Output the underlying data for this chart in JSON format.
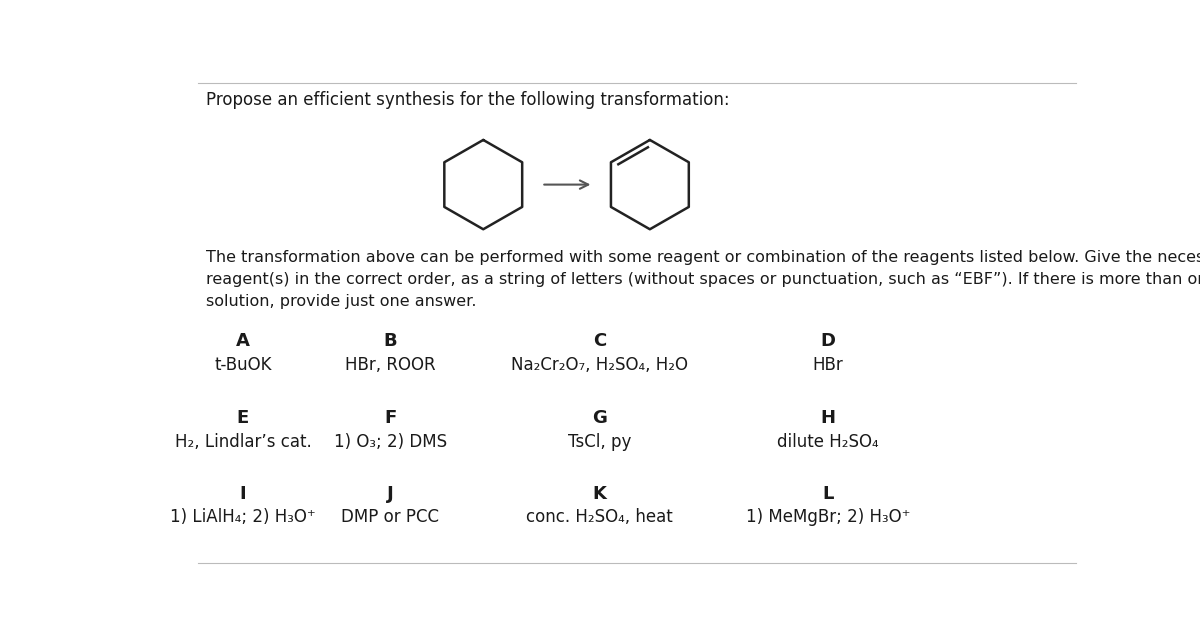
{
  "title": "Propose an efficient synthesis for the following transformation:",
  "body_text_line1": "The transformation above can be performed with some reagent or combination of the reagents listed below. Give the necessary",
  "body_text_line2": "reagent(s) in the correct order, as a string of letters (without spaces or punctuation, such as “EBF”). If there is more than one correct",
  "body_text_line3": "solution, provide just one answer.",
  "reagents": [
    {
      "label": "A",
      "text": "t-BuOK"
    },
    {
      "label": "B",
      "text": "HBr, ROOR"
    },
    {
      "label": "C",
      "text": "Na₂Cr₂O₇, H₂SO₄, H₂O"
    },
    {
      "label": "D",
      "text": "HBr"
    },
    {
      "label": "E",
      "text": "H₂, Lindlar’s cat."
    },
    {
      "label": "F",
      "text": "1) O₃; 2) DMS"
    },
    {
      "label": "G",
      "text": "TsCl, py"
    },
    {
      "label": "H",
      "text": "dilute H₂SO₄"
    },
    {
      "label": "I",
      "text": "1) LiAlH₄; 2) H₃O⁺"
    },
    {
      "label": "J",
      "text": "DMP or PCC"
    },
    {
      "label": "K",
      "text": "conc. H₂SO₄, heat"
    },
    {
      "label": "L",
      "text": "1) MeMgBr; 2) H₃O⁺"
    }
  ],
  "bg_color": "#ffffff",
  "text_color": "#1a1a1a",
  "label_fontsize": 13,
  "reagent_fontsize": 12,
  "title_fontsize": 12,
  "body_fontsize": 11.5
}
